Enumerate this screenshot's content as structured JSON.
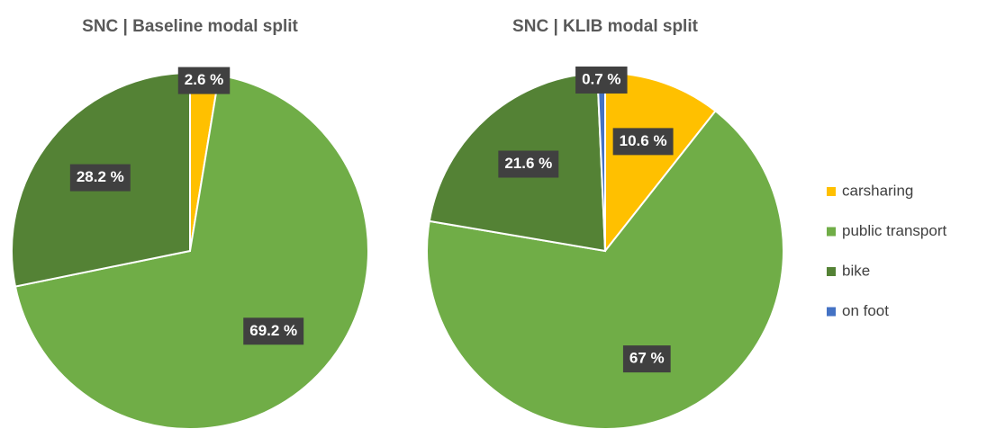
{
  "chart_data": [
    {
      "type": "pie",
      "title": "SNC | Baseline modal split",
      "categories": [
        "carsharing",
        "public transport",
        "bike"
      ],
      "values": [
        2.6,
        69.2,
        28.2
      ],
      "value_labels": [
        "2.6 %",
        "69.2 %",
        "28.2 %"
      ],
      "colors": [
        "#FFC000",
        "#70AD47",
        "#548235"
      ]
    },
    {
      "type": "pie",
      "title": "SNC | KLIB modal split",
      "categories": [
        "carsharing",
        "public transport",
        "bike",
        "on foot"
      ],
      "values": [
        10.6,
        67,
        21.6,
        0.7
      ],
      "value_labels": [
        "10.6 %",
        "67 %",
        "21.6 %",
        "0.7 %"
      ],
      "colors": [
        "#FFC000",
        "#70AD47",
        "#548235",
        "#4472C4"
      ],
      "legend": "right"
    }
  ]
}
